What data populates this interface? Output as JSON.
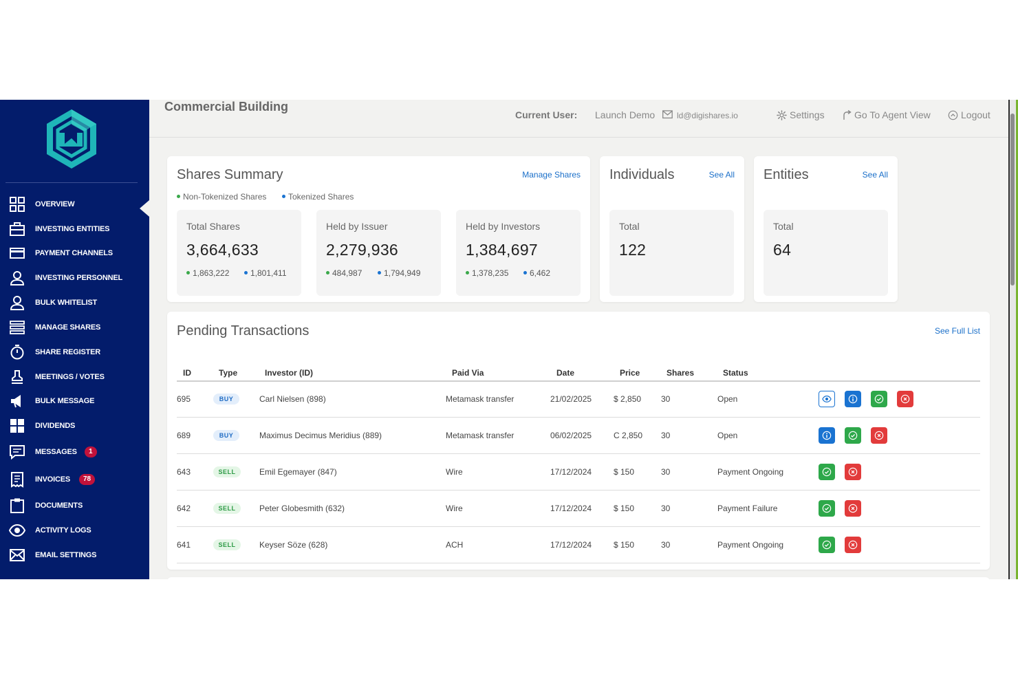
{
  "page": {
    "title": "Commercial Building"
  },
  "topbar": {
    "current_user_label": "Current User:",
    "user_name": "Launch Demo",
    "user_email": "ld@digishares.io",
    "settings": "Settings",
    "agent_view": "Go To Agent View",
    "logout": "Logout"
  },
  "sidebar": {
    "items": [
      {
        "label": "OVERVIEW",
        "icon": "grid-icon"
      },
      {
        "label": "INVESTING ENTITIES",
        "icon": "briefcase-icon"
      },
      {
        "label": "PAYMENT CHANNELS",
        "icon": "credit-card-icon"
      },
      {
        "label": "INVESTING PERSONNEL",
        "icon": "user-icon"
      },
      {
        "label": "BULK WHITELIST",
        "icon": "user-icon"
      },
      {
        "label": "MANAGE SHARES",
        "icon": "list-icon"
      },
      {
        "label": "SHARE REGISTER",
        "icon": "stopwatch-icon"
      },
      {
        "label": "MEETINGS / VOTES",
        "icon": "stamp-icon"
      },
      {
        "label": "BULK MESSAGE",
        "icon": "megaphone-icon"
      },
      {
        "label": "DIVIDENDS",
        "icon": "tiles-icon"
      },
      {
        "label": "MESSAGES",
        "icon": "chat-icon",
        "badge": "1"
      },
      {
        "label": "INVOICES",
        "icon": "receipt-icon",
        "badge": "78"
      },
      {
        "label": "DOCUMENTS",
        "icon": "clipboard-icon"
      },
      {
        "label": "ACTIVITY LOGS",
        "icon": "eye-icon"
      },
      {
        "label": "EMAIL SETTINGS",
        "icon": "envelope-icon"
      }
    ]
  },
  "shares_summary": {
    "title": "Shares Summary",
    "link": "Manage Shares",
    "legend_non_tokenized": "Non-Tokenized Shares",
    "legend_tokenized": "Tokenized Shares",
    "stats": [
      {
        "label": "Total Shares",
        "value": "3,664,633",
        "non_tokenized": "1,863,222",
        "tokenized": "1,801,411"
      },
      {
        "label": "Held by Issuer",
        "value": "2,279,936",
        "non_tokenized": "484,987",
        "tokenized": "1,794,949"
      },
      {
        "label": "Held by Investors",
        "value": "1,384,697",
        "non_tokenized": "1,378,235",
        "tokenized": "6,462"
      }
    ]
  },
  "individuals": {
    "title": "Individuals",
    "link": "See All",
    "label": "Total",
    "value": "122"
  },
  "entities": {
    "title": "Entities",
    "link": "See All",
    "label": "Total",
    "value": "64"
  },
  "pending": {
    "title": "Pending Transactions",
    "link": "See Full List",
    "columns": [
      "ID",
      "Type",
      "Investor (ID)",
      "Paid Via",
      "Date",
      "Price",
      "Shares",
      "Status"
    ],
    "rows": [
      {
        "id": "695",
        "type": "BUY",
        "investor": "Carl Nielsen (898)",
        "paid_via": "Metamask transfer",
        "date": "21/02/2025",
        "price": "$ 2,850",
        "shares": "30",
        "status": "Open",
        "actions": [
          "view",
          "info",
          "approve",
          "reject"
        ]
      },
      {
        "id": "689",
        "type": "BUY",
        "investor": "Maximus Decimus Meridius (889)",
        "paid_via": "Metamask transfer",
        "date": "06/02/2025",
        "price": "C 2,850",
        "shares": "30",
        "status": "Open",
        "actions": [
          "info",
          "approve",
          "reject"
        ]
      },
      {
        "id": "643",
        "type": "SELL",
        "investor": "Emil Egemayer (847)",
        "paid_via": "Wire",
        "date": "17/12/2024",
        "price": "$ 150",
        "shares": "30",
        "status": "Payment Ongoing",
        "actions": [
          "approve",
          "reject"
        ]
      },
      {
        "id": "642",
        "type": "SELL",
        "investor": "Peter Globesmith (632)",
        "paid_via": "Wire",
        "date": "17/12/2024",
        "price": "$ 150",
        "shares": "30",
        "status": "Payment Failure",
        "actions": [
          "approve",
          "reject"
        ]
      },
      {
        "id": "641",
        "type": "SELL",
        "investor": "Keyser Söze (628)",
        "paid_via": "ACH",
        "date": "17/12/2024",
        "price": "$ 150",
        "shares": "30",
        "status": "Payment Ongoing",
        "actions": [
          "approve",
          "reject"
        ]
      }
    ]
  },
  "colors": {
    "sidebar_bg": "#031c6b",
    "accent_blue": "#1a73d1",
    "approve_green": "#2ea84a",
    "reject_red": "#e23b3b",
    "badge_red": "#c1123b",
    "logo_teal": "#1fb5b8"
  }
}
